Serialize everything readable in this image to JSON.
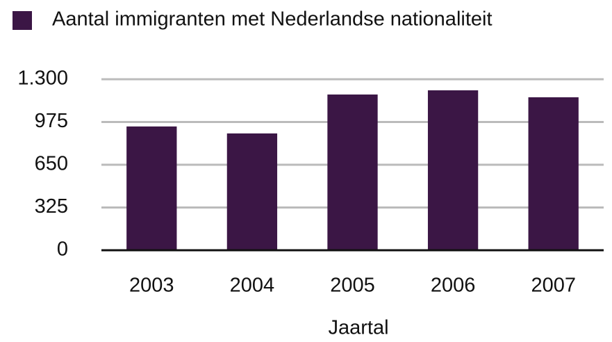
{
  "chart_data": {
    "type": "bar",
    "categories": [
      "2003",
      "2004",
      "2005",
      "2006",
      "2007"
    ],
    "series": [
      {
        "name": "Aantal immigranten met Nederlandse nationaliteit",
        "color": "#3b1645",
        "values": [
          941,
          888,
          1184,
          1216,
          1163
        ]
      }
    ],
    "xlabel": "Jaartal",
    "ylim": [
      0,
      1300
    ],
    "yticks": [
      0,
      325,
      650,
      975,
      {
        "value": 1300,
        "label": "1.300"
      }
    ],
    "grid": true,
    "legend": "top"
  }
}
